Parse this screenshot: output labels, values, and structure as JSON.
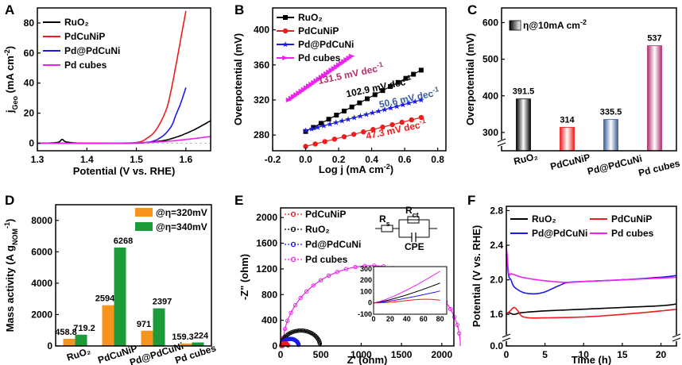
{
  "colors": {
    "ruo2": "#000000",
    "pdcunip": "#ee1c1c",
    "pdpdcuni": "#1a1aee",
    "pdcubes": "#ee22ee",
    "orange": "#f7941d",
    "green": "#1d9a3a",
    "slate": "#3a5f9a",
    "magenta_dark": "#b0306e"
  },
  "chart_data": [
    {
      "id": "A",
      "type": "line",
      "panel_label": "A",
      "xlabel": "Potential (V vs. RHE)",
      "ylabel": "j",
      "ylabel_sub": "Geo",
      "ylabel_unit": " (mA cm",
      "ylabel_sup": "-2",
      "ylabel_end": ")",
      "xlim": [
        1.3,
        1.65
      ],
      "ylim": [
        -5,
        90
      ],
      "xticks": [
        1.3,
        1.4,
        1.5,
        1.6
      ],
      "xtick_labels": [
        "1.3",
        "1.4",
        "1.5",
        "1.6"
      ],
      "yticks": [
        0,
        20,
        40,
        60,
        80
      ],
      "ytick_labels": [
        "0",
        "20",
        "40",
        "60",
        "80"
      ],
      "legend": [
        "RuO₂",
        "PdCuNiP",
        "Pd@PdCuNi",
        "Pd cubes"
      ],
      "series": [
        {
          "name": "RuO₂",
          "color": "#000000",
          "x": [
            1.3,
            1.34,
            1.35,
            1.36,
            1.4,
            1.5,
            1.55,
            1.58,
            1.6,
            1.62,
            1.65
          ],
          "y": [
            0,
            0.5,
            2.5,
            0.8,
            0,
            0.2,
            1.5,
            4,
            6.5,
            9.5,
            15
          ]
        },
        {
          "name": "PdCuNiP",
          "color": "#ee1c1c",
          "x": [
            1.3,
            1.45,
            1.5,
            1.52,
            1.54,
            1.56,
            1.57,
            1.58,
            1.59,
            1.6
          ],
          "y": [
            0,
            0,
            0.5,
            3,
            9,
            22,
            35,
            52,
            70,
            88
          ]
        },
        {
          "name": "Pd@PdCuNi",
          "color": "#1a1aee",
          "x": [
            1.3,
            1.45,
            1.52,
            1.55,
            1.57,
            1.58,
            1.59,
            1.6
          ],
          "y": [
            0,
            0,
            0.5,
            4,
            11,
            19,
            27,
            37
          ]
        },
        {
          "name": "Pd cubes",
          "color": "#ee22ee",
          "x": [
            1.3,
            1.4,
            1.5,
            1.55,
            1.6,
            1.65
          ],
          "y": [
            0,
            0,
            0.3,
            1,
            2.5,
            4.5
          ]
        }
      ]
    },
    {
      "id": "B",
      "type": "line",
      "panel_label": "B",
      "xlabel": "Log j (mA cm",
      "xlabel_sup": "-2",
      "xlabel_end": ")",
      "ylabel": "Overpotential (mV)",
      "xlim": [
        -0.2,
        0.85
      ],
      "ylim": [
        262,
        425
      ],
      "xticks": [
        -0.2,
        0.0,
        0.2,
        0.4,
        0.6,
        0.8
      ],
      "xtick_labels": [
        "-0.2",
        "0.0",
        "0.2",
        "0.4",
        "0.6",
        "0.8"
      ],
      "yticks": [
        280,
        320,
        360,
        400
      ],
      "ytick_labels": [
        "280",
        "320",
        "360",
        "400"
      ],
      "legend": [
        "RuO₂",
        "PdCuNiP",
        "Pd@PdCuNi",
        "Pd cubes"
      ],
      "annotations": [
        {
          "text": "131.5 mV dec",
          "sup": "-1",
          "color": "#b0306e",
          "x": 0.08,
          "y": 338
        },
        {
          "text": "102.9 mV dec",
          "sup": "-1",
          "color": "#000000",
          "x": 0.25,
          "y": 323
        },
        {
          "text": "50.6 mV dec",
          "sup": "-1",
          "color": "#3a5f9a",
          "x": 0.45,
          "y": 311
        },
        {
          "text": "47.3 mV dec",
          "sup": "-1",
          "color": "#ee1c1c",
          "x": 0.37,
          "y": 275
        }
      ],
      "series": [
        {
          "name": "RuO₂",
          "color": "#000000",
          "marker": "square",
          "x_start": 0.0,
          "x_end": 0.7,
          "y_start": 284,
          "y_end": 354,
          "n": 16
        },
        {
          "name": "PdCuNiP",
          "color": "#ee1c1c",
          "marker": "circle",
          "x_start": 0.0,
          "x_end": 0.7,
          "y_start": 267,
          "y_end": 300,
          "n": 13
        },
        {
          "name": "Pd@PdCuNi",
          "color": "#1a1aee",
          "marker": "star",
          "x_start": 0.0,
          "x_end": 0.7,
          "y_start": 285,
          "y_end": 320,
          "n": 20
        },
        {
          "name": "Pd cubes",
          "color": "#ee22ee",
          "marker": "triangle",
          "x_start": -0.1,
          "x_end": 0.28,
          "y_start": 320,
          "y_end": 370,
          "n": 26
        }
      ]
    },
    {
      "id": "C",
      "type": "bar",
      "panel_label": "C",
      "ylabel": "Overpotential (mV)",
      "legend": "η@10mA cm",
      "legend_sup": "-2",
      "ylim": [
        250,
        640
      ],
      "yticks": [
        300,
        400,
        500,
        600
      ],
      "ytick_labels": [
        "300",
        "400",
        "500",
        "600"
      ],
      "categories": [
        "RuO₂",
        "PdCuNiP",
        "Pd@PdCuNi",
        "Pd cubes"
      ],
      "category_colors": [
        "#000000",
        "#ee1c1c",
        "#3a5f9a",
        "#b0306e"
      ],
      "values": [
        391.5,
        314,
        335.5,
        537
      ],
      "value_labels": [
        "391.5",
        "314",
        "335.5",
        "537"
      ]
    },
    {
      "id": "D",
      "type": "bar",
      "panel_label": "D",
      "ylabel": "Mass activity (A g",
      "ylabel_sub": "NOM",
      "ylabel_sup": "-1",
      "ylabel_end": ")",
      "ylim": [
        0,
        9000
      ],
      "yticks": [
        0,
        2000,
        4000,
        6000,
        8000
      ],
      "ytick_labels": [
        "0",
        "2000",
        "4000",
        "6000",
        "8000"
      ],
      "categories": [
        "RuO₂",
        "PdCuNiP",
        "Pd@PdCuNi",
        "Pd cubes"
      ],
      "series": [
        {
          "name": "@η=320mV",
          "color": "#f7941d",
          "values": [
            458.8,
            2594,
            971,
            159.3
          ],
          "labels": [
            "458.8",
            "2594",
            "971",
            "159.3"
          ]
        },
        {
          "name": "@η=340mV",
          "color": "#1d9a3a",
          "values": [
            719.2,
            6268,
            2397,
            224
          ],
          "labels": [
            "719.2",
            "6268",
            "2397",
            "224"
          ]
        }
      ]
    },
    {
      "id": "E",
      "type": "scatter",
      "panel_label": "E",
      "xlabel": "Z' (ohm)",
      "ylabel": "-Z\" (ohm)",
      "xlim": [
        0,
        2150
      ],
      "ylim": [
        0,
        2150
      ],
      "xticks": [
        0,
        500,
        1000,
        1500,
        2000
      ],
      "xtick_labels": [
        "0",
        "500",
        "1000",
        "1500",
        "2000"
      ],
      "yticks": [
        0,
        400,
        800,
        1200,
        1600,
        2000
      ],
      "ytick_labels": [
        "0",
        "400",
        "800",
        "1200",
        "1600",
        "2000"
      ],
      "legend": [
        "PdCuNiP",
        "RuO₂",
        "Pd@PdCuNi",
        "Pd cubes"
      ],
      "circuit": {
        "rs": "R",
        "rs_sub": "s",
        "rct": "R",
        "rct_sub": "ct",
        "cpe": "CPE"
      },
      "series": [
        {
          "name": "Pd cubes",
          "color": "#ee22ee",
          "center": 1130,
          "radius": 1100,
          "height": 1250
        },
        {
          "name": "RuO₂",
          "color": "#000000",
          "center": 250,
          "radius": 240,
          "height": 240
        },
        {
          "name": "Pd@PdCuNi",
          "color": "#1a1aee",
          "center": 120,
          "radius": 105,
          "height": 110
        },
        {
          "name": "PdCuNiP",
          "color": "#ee1c1c",
          "center": 50,
          "radius": 42,
          "height": 42
        }
      ],
      "inset": {
        "xlim": [
          0,
          88
        ],
        "ylim": [
          -100,
          320
        ],
        "xticks": [
          0,
          20,
          40,
          60,
          80
        ],
        "xtick_labels": [
          "0",
          "20",
          "40",
          "60",
          "80"
        ],
        "yticks": [
          -100,
          0,
          100,
          200,
          300
        ],
        "ytick_labels": [
          "-100",
          "0",
          "100",
          "200",
          "300"
        ],
        "series": [
          {
            "name": "Pd cubes",
            "color": "#ee22ee",
            "end": 280
          },
          {
            "name": "RuO₂",
            "color": "#000000",
            "end": 175
          },
          {
            "name": "Pd@PdCuNi",
            "color": "#1a1aee",
            "end": 105
          },
          {
            "name": "PdCuNiP",
            "color": "#ee1c1c",
            "end": 40
          }
        ]
      }
    },
    {
      "id": "F",
      "type": "line",
      "panel_label": "F",
      "xlabel": "Time (h)",
      "ylabel": "Potential (V vs. RHE)",
      "xlim": [
        0,
        22
      ],
      "ylim": [
        0,
        2.85
      ],
      "xticks": [
        0,
        5,
        10,
        15,
        20
      ],
      "xtick_labels": [
        "0",
        "5",
        "10",
        "15",
        "20"
      ],
      "yticks": [
        0.0,
        1.6,
        2.0,
        2.4,
        2.8
      ],
      "ytick_labels": [
        "0.0",
        "1.6",
        "2.0",
        "2.4",
        "2.8"
      ],
      "legend": [
        "RuO₂",
        "PdCuNiP",
        "Pd@PdCuNi",
        "Pd cubes"
      ],
      "series": [
        {
          "name": "RuO₂",
          "color": "#000000",
          "x": [
            0,
            0.3,
            1,
            2,
            5,
            10,
            15,
            20,
            22
          ],
          "y": [
            1.6,
            1.62,
            1.6,
            1.62,
            1.64,
            1.66,
            1.68,
            1.7,
            1.72
          ]
        },
        {
          "name": "PdCuNiP",
          "color": "#ee1c1c",
          "x": [
            0,
            0.5,
            1,
            1.5,
            2,
            3,
            5,
            10,
            15,
            20,
            22
          ],
          "y": [
            1.6,
            1.64,
            1.68,
            1.64,
            1.58,
            1.56,
            1.56,
            1.57,
            1.6,
            1.64,
            1.66
          ]
        },
        {
          "name": "Pd@PdCuNi",
          "color": "#1a1aee",
          "x": [
            0,
            0.3,
            0.6,
            1,
            2,
            3,
            4,
            5,
            6,
            7,
            8,
            10,
            15,
            20,
            22
          ],
          "y": [
            2.3,
            2.05,
            2.0,
            1.92,
            1.86,
            1.84,
            1.84,
            1.86,
            1.9,
            1.94,
            1.97,
            1.98,
            2.0,
            2.03,
            2.05
          ]
        },
        {
          "name": "Pd cubes",
          "color": "#ee22ee",
          "x": [
            0,
            0.3,
            0.6,
            1,
            2,
            4,
            6,
            8,
            10,
            15,
            20,
            22
          ],
          "y": [
            2.4,
            2.08,
            2.07,
            2.06,
            2.03,
            2.0,
            1.98,
            1.97,
            1.98,
            2.0,
            2.02,
            2.03
          ]
        }
      ]
    }
  ]
}
